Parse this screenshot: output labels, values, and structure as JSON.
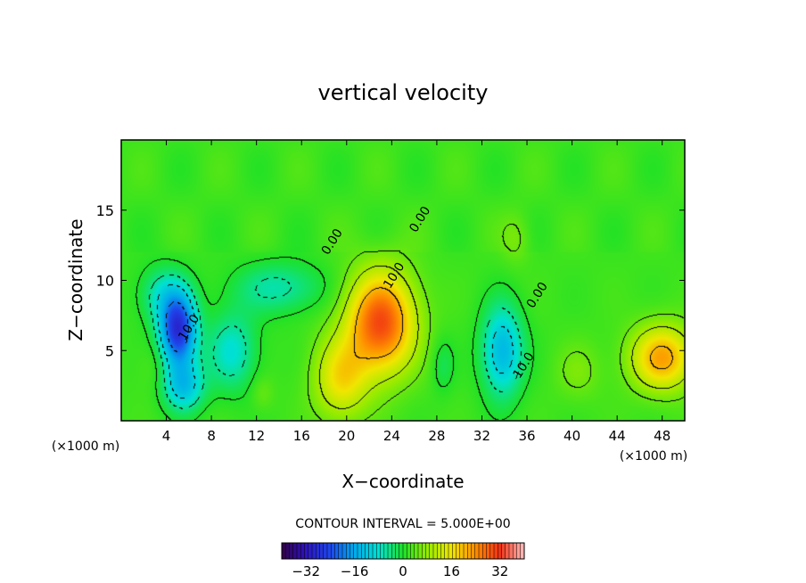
{
  "chart_data": {
    "type": "heatmap",
    "title": "vertical velocity",
    "xlabel": "X−coordinate",
    "ylabel": "Z−coordinate",
    "x_unit_left": "(×1000 m)",
    "x_unit_right": "(×1000 m)",
    "xlim": [
      0,
      50
    ],
    "ylim": [
      0,
      20
    ],
    "x_ticks": [
      4,
      8,
      12,
      16,
      20,
      24,
      28,
      32,
      36,
      40,
      44,
      48
    ],
    "y_ticks": [
      5,
      10,
      15
    ],
    "contour_interval_label": "CONTOUR INTERVAL = 5.000E+00",
    "colorbar": {
      "min": -40,
      "max": 40,
      "ticks": [
        -32,
        -16,
        0,
        16,
        32
      ]
    },
    "contour_labels": [
      {
        "text": "0.00",
        "x": 19,
        "y": 12.6
      },
      {
        "text": "10.0",
        "x": 24.5,
        "y": 10.2
      },
      {
        "text": "0.00",
        "x": 26.8,
        "y": 14.2
      },
      {
        "text": "0.00",
        "x": 37.2,
        "y": 8.8
      },
      {
        "text": "10.0",
        "x": 36.0,
        "y": 3.8
      },
      {
        "text": "10.0",
        "x": 6.3,
        "y": 6.5
      }
    ],
    "features": [
      {
        "kind": "updraft",
        "x": 23,
        "y": 7,
        "peak": 28
      },
      {
        "kind": "updraft",
        "x": 48,
        "y": 4.5,
        "peak": 20
      },
      {
        "kind": "updraft",
        "x": 20,
        "y": 3,
        "peak": 8
      },
      {
        "kind": "downdraft",
        "x": 5,
        "y": 6.5,
        "peak": -30
      },
      {
        "kind": "downdraft",
        "x": 33.8,
        "y": 5,
        "peak": -16
      },
      {
        "kind": "downdraft",
        "x": 9.8,
        "y": 5,
        "peak": -10
      },
      {
        "kind": "downdraft",
        "x": 14,
        "y": 9.5,
        "peak": -8
      }
    ]
  }
}
